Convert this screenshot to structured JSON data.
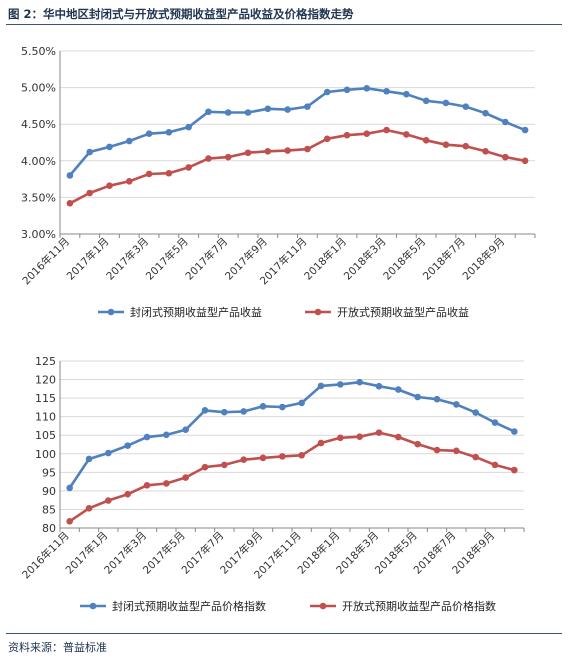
{
  "title": "图 2：华中地区封闭式与开放式预期收益型产品收益及价格指数走势",
  "source": "资料来源：普益标准",
  "colors": {
    "closed": "#4f81bd",
    "open": "#c0504d",
    "grid": "#d9d9d9",
    "axis": "#888888"
  },
  "chart_data": [
    {
      "type": "line",
      "title": "",
      "xlabel": "",
      "ylabel": "",
      "ylim": [
        3.0,
        5.5
      ],
      "yticks": [
        "3.00%",
        "3.50%",
        "4.00%",
        "4.50%",
        "5.00%",
        "5.50%"
      ],
      "grid": true,
      "legend_position": "bottom",
      "categories": [
        "2016年11月",
        "2016年12月",
        "2017年1月",
        "2017年2月",
        "2017年3月",
        "2017年4月",
        "2017年5月",
        "2017年6月",
        "2017年7月",
        "2017年8月",
        "2017年9月",
        "2017年10月",
        "2017年11月",
        "2017年12月",
        "2018年1月",
        "2018年2月",
        "2018年3月",
        "2018年4月",
        "2018年5月",
        "2018年6月",
        "2018年7月",
        "2018年8月",
        "2018年9月",
        "2018年10月"
      ],
      "tick_labels": [
        "2016年11月",
        "2017年1月",
        "2017年3月",
        "2017年5月",
        "2017年7月",
        "2017年9月",
        "2017年11月",
        "2018年1月",
        "2018年3月",
        "2018年5月",
        "2018年7月",
        "2018年9月"
      ],
      "series": [
        {
          "name": "封闭式预期收益型产品收益",
          "color": "#4f81bd",
          "values": [
            3.8,
            4.12,
            4.19,
            4.27,
            4.37,
            4.39,
            4.46,
            4.67,
            4.66,
            4.66,
            4.71,
            4.7,
            4.74,
            4.94,
            4.97,
            4.99,
            4.95,
            4.91,
            4.82,
            4.79,
            4.74,
            4.65,
            4.53,
            4.42
          ]
        },
        {
          "name": "开放式预期收益型产品收益",
          "color": "#c0504d",
          "values": [
            3.42,
            3.56,
            3.66,
            3.72,
            3.82,
            3.83,
            3.91,
            4.03,
            4.05,
            4.11,
            4.13,
            4.14,
            4.16,
            4.3,
            4.35,
            4.37,
            4.42,
            4.36,
            4.28,
            4.22,
            4.2,
            4.13,
            4.05,
            4.0
          ]
        }
      ]
    },
    {
      "type": "line",
      "title": "",
      "xlabel": "",
      "ylabel": "",
      "ylim": [
        80,
        125
      ],
      "yticks": [
        "80",
        "85",
        "90",
        "95",
        "100",
        "105",
        "110",
        "115",
        "120",
        "125"
      ],
      "grid": true,
      "legend_position": "bottom",
      "categories": [
        "2016年11月",
        "2016年12月",
        "2017年1月",
        "2017年2月",
        "2017年3月",
        "2017年4月",
        "2017年5月",
        "2017年6月",
        "2017年7月",
        "2017年8月",
        "2017年9月",
        "2017年10月",
        "2017年11月",
        "2017年12月",
        "2018年1月",
        "2018年2月",
        "2018年3月",
        "2018年4月",
        "2018年5月",
        "2018年6月",
        "2018年7月",
        "2018年8月",
        "2018年9月",
        "2018年10月"
      ],
      "tick_labels": [
        "2016年11月",
        "2017年1月",
        "2017年3月",
        "2017年5月",
        "2017年7月",
        "2017年9月",
        "2017年11月",
        "2018年1月",
        "2018年3月",
        "2018年5月",
        "2018年7月",
        "2018年9月"
      ],
      "series": [
        {
          "name": "封闭式预期收益型产品价格指数",
          "color": "#4f81bd",
          "values": [
            90.8,
            98.6,
            100.2,
            102.2,
            104.5,
            105.1,
            106.5,
            111.7,
            111.2,
            111.4,
            112.8,
            112.6,
            113.7,
            118.3,
            118.7,
            119.3,
            118.2,
            117.3,
            115.3,
            114.7,
            113.3,
            111.1,
            108.4,
            106.0
          ]
        },
        {
          "name": "开放式预期收益型产品价格指数",
          "color": "#c0504d",
          "values": [
            81.8,
            85.3,
            87.4,
            89.1,
            91.5,
            92.0,
            93.6,
            96.4,
            97.0,
            98.4,
            98.9,
            99.3,
            99.6,
            102.9,
            104.3,
            104.6,
            105.7,
            104.5,
            102.6,
            101.0,
            100.8,
            99.1,
            97.0,
            95.6
          ]
        }
      ]
    }
  ]
}
